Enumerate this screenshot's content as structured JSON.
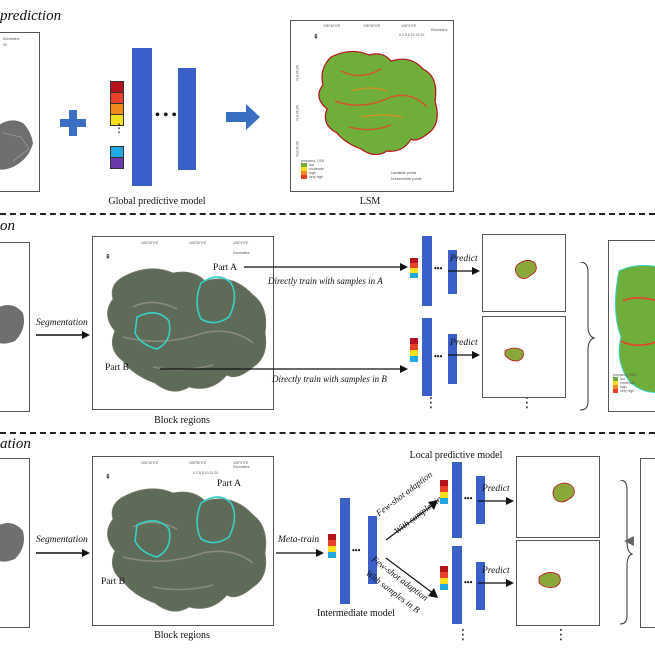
{
  "sections": {
    "global": {
      "title": "prediction",
      "model_caption": "Global predictive model",
      "map_caption": "LSM"
    },
    "segmentation": {
      "title": "on",
      "arrow_label": "Segmentation",
      "regions_caption": "Block regions",
      "part_a": "Part A",
      "part_b": "Part B",
      "train_a": "Directly train with samples in A",
      "train_b": "Directly train with samples in B",
      "predict_a": "Predict",
      "predict_b": "Predict"
    },
    "meta": {
      "title": "ation",
      "arrow_label": "Segmentation",
      "regions_caption": "Block regions",
      "part_a": "Part A",
      "part_b": "Part B",
      "meta_train": "Meta-train",
      "intermediate_caption": "Intermediate model",
      "local_caption": "Local predictive model",
      "adapt_a_1": "Few-shot adaption",
      "adapt_a_2": "With samples in A",
      "adapt_b_1": "Few-shot adaption",
      "adapt_b_2": "With samples in B",
      "predict_a": "Predict",
      "predict_b": "Predict"
    }
  },
  "map_text": {
    "legend_title": "prepared_LSM",
    "legend_items": [
      "low",
      "moderate",
      "high",
      "very high"
    ],
    "pts_landslide": "Landslide points",
    "pts_non": "Nonlandslide points",
    "scale_nums": "0 2.5 5    10    15    20",
    "scale_unit": "Kilometers",
    "lon1": "105°40'0\"E",
    "lon2": "105°50'0\"E",
    "lon3": "106°0'0\"E",
    "lat1": "30°40'0\"N",
    "lat2": "30°30'0\"N",
    "lat3": "30°20'0\"N",
    "left_scale": "Kilometers",
    "left_num": "20"
  },
  "palette": {
    "class_colors": [
      "#b5121b",
      "#e8402a",
      "#f08a1a",
      "#f6e020",
      "#22a8e0",
      "#3a46b8",
      "#6a3aa8"
    ],
    "layer_blue": "#3a5fc8",
    "arrow_blue": "#3a6fc4"
  }
}
